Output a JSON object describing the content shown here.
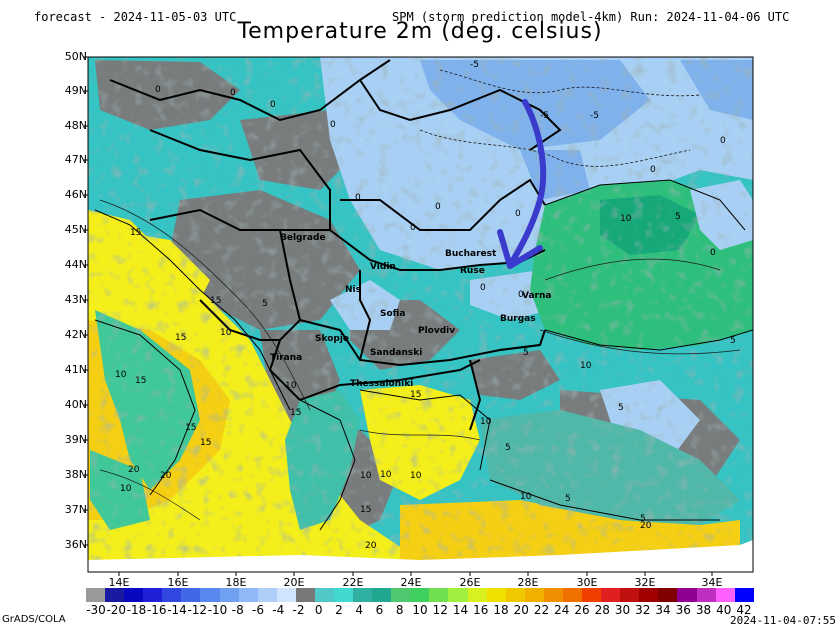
{
  "header": {
    "forecast": "forecast - 2024-11-05-03 UTC",
    "model": "SPM (storm prediction model-4km) Run: 2024-11-04-06 UTC"
  },
  "title": "Temperature 2m (deg. celsius)",
  "lat_labels": [
    "50N",
    "49N",
    "48N",
    "47N",
    "46N",
    "45N",
    "44N",
    "43N",
    "42N",
    "41N",
    "40N",
    "39N",
    "38N",
    "37N",
    "36N"
  ],
  "lon_labels": [
    "14E",
    "16E",
    "18E",
    "20E",
    "22E",
    "24E",
    "26E",
    "28E",
    "30E",
    "32E",
    "34E"
  ],
  "cities": [
    {
      "name": "Belgrade"
    },
    {
      "name": "Bucharest"
    },
    {
      "name": "Nis"
    },
    {
      "name": "Vidin"
    },
    {
      "name": "Ruse"
    },
    {
      "name": "Sofia"
    },
    {
      "name": "Varna"
    },
    {
      "name": "Burgas"
    },
    {
      "name": "Plovdiv"
    },
    {
      "name": "Skopje"
    },
    {
      "name": "Tirana"
    },
    {
      "name": "Sandanski"
    },
    {
      "name": "Thessaloniki"
    }
  ],
  "contour_labels": [
    {
      "v": "-5"
    },
    {
      "v": "-5"
    },
    {
      "v": "-5"
    },
    {
      "v": "0"
    },
    {
      "v": "0"
    },
    {
      "v": "0"
    },
    {
      "v": "0"
    },
    {
      "v": "0"
    },
    {
      "v": "0"
    },
    {
      "v": "0"
    },
    {
      "v": "0"
    },
    {
      "v": "0"
    },
    {
      "v": "0"
    },
    {
      "v": "0"
    },
    {
      "v": "0"
    },
    {
      "v": "0"
    },
    {
      "v": "5"
    },
    {
      "v": "5"
    },
    {
      "v": "5"
    },
    {
      "v": "5"
    },
    {
      "v": "5"
    },
    {
      "v": "5"
    },
    {
      "v": "5"
    },
    {
      "v": "5"
    },
    {
      "v": "10"
    },
    {
      "v": "10"
    },
    {
      "v": "10"
    },
    {
      "v": "10"
    },
    {
      "v": "10"
    },
    {
      "v": "10"
    },
    {
      "v": "10"
    },
    {
      "v": "10"
    },
    {
      "v": "10"
    },
    {
      "v": "10"
    },
    {
      "v": "10"
    },
    {
      "v": "15"
    },
    {
      "v": "15"
    },
    {
      "v": "15"
    },
    {
      "v": "15"
    },
    {
      "v": "15"
    },
    {
      "v": "15"
    },
    {
      "v": "15"
    },
    {
      "v": "15"
    },
    {
      "v": "15"
    },
    {
      "v": "20"
    },
    {
      "v": "20"
    },
    {
      "v": "20"
    },
    {
      "v": "20"
    }
  ],
  "colorbar": {
    "labels": [
      "-30",
      "-20",
      "-18",
      "-16",
      "-14",
      "-12",
      "-10",
      "-8",
      "-6",
      "-4",
      "-2",
      "0",
      "2",
      "4",
      "6",
      "8",
      "10",
      "12",
      "14",
      "16",
      "18",
      "20",
      "22",
      "24",
      "26",
      "28",
      "30",
      "32",
      "34",
      "36",
      "38",
      "40",
      "42"
    ],
    "colors": [
      "#9a9a9a",
      "#1a1aa0",
      "#0808c0",
      "#2020d8",
      "#3048e0",
      "#4068e8",
      "#5888f0",
      "#70a0f0",
      "#90b8f8",
      "#b0cff8",
      "#d0e4ff",
      "#787878",
      "#50c8c8",
      "#40d8d0",
      "#30b0a0",
      "#20a890",
      "#50c870",
      "#40d060",
      "#70e050",
      "#a0f040",
      "#d8f020",
      "#f0e000",
      "#f0c800",
      "#f0b000",
      "#f09000",
      "#f07000",
      "#f04000",
      "#e02020",
      "#c01010",
      "#a00000",
      "#800000",
      "#900090",
      "#c030c0",
      "#ff60ff",
      "#0000ff"
    ]
  },
  "footer": {
    "left": "GrADS/COLA",
    "right": "2024-11-04-07:55"
  }
}
